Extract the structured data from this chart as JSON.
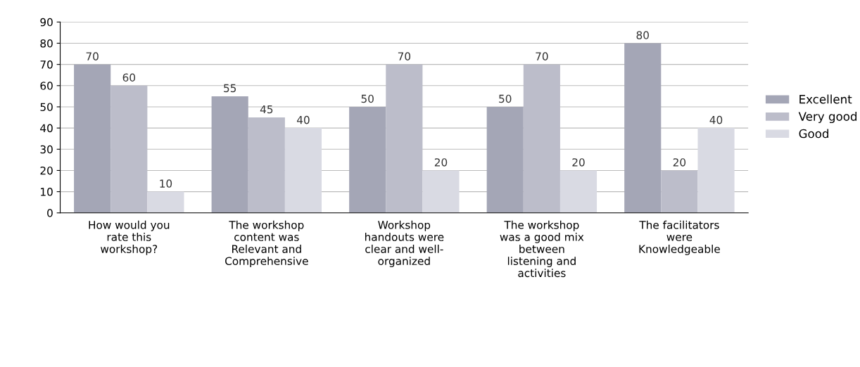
{
  "chart_data": {
    "type": "bar",
    "categories": [
      "How would you\nrate this\nworkshop?",
      "The workshop\ncontent was\nRelevant and\nComprehensive",
      "Workshop\nhandouts were\nclear and well-\norganized",
      "The workshop\nwas a good mix\nbetween\nlistening and\nactivities",
      "The facilitators\nwere\nKnowledgeable"
    ],
    "series": [
      {
        "name": "Excellent",
        "color": "#a4a6b6",
        "values": [
          70,
          55,
          50,
          50,
          80
        ]
      },
      {
        "name": "Very good",
        "color": "#bcbdca",
        "values": [
          60,
          45,
          70,
          70,
          20
        ]
      },
      {
        "name": "Good",
        "color": "#d9dae3",
        "values": [
          10,
          40,
          20,
          20,
          40
        ]
      }
    ],
    "ylim": [
      0,
      90
    ],
    "yticks": [
      0,
      10,
      20,
      30,
      40,
      50,
      60,
      70,
      80,
      90
    ],
    "grid": "y",
    "legend": "right",
    "data_labels": true
  }
}
